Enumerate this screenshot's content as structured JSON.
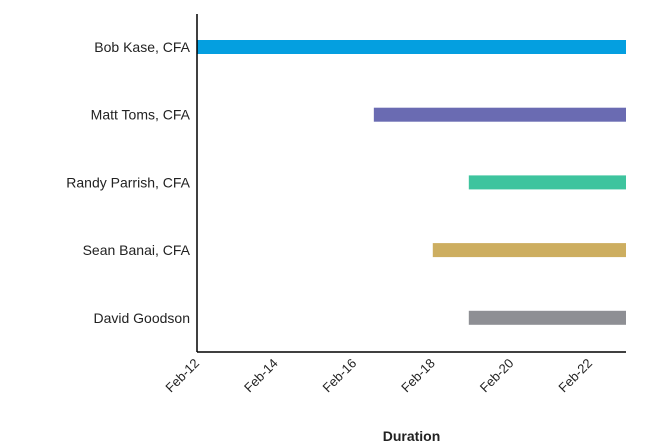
{
  "chart_data": {
    "type": "gantt",
    "title": "",
    "xlabel": "Duration",
    "ylabel": "",
    "x_ticks": [
      "Feb-12",
      "Feb-14",
      "Feb-16",
      "Feb-18",
      "Feb-20",
      "Feb-22"
    ],
    "xlim": [
      "2012-02",
      "2023-01"
    ],
    "grid": false,
    "legend": "none",
    "series": [
      {
        "name": "Bob Kase, CFA",
        "start": "2012-02",
        "end": "2023-01",
        "color": "#049fe0"
      },
      {
        "name": "Matt Toms, CFA",
        "start": "2016-08",
        "end": "2023-01",
        "color": "#6a6bb2"
      },
      {
        "name": "Randy Parrish, CFA",
        "start": "2019-01",
        "end": "2023-01",
        "color": "#3ec49e"
      },
      {
        "name": "Sean Banai, CFA",
        "start": "2018-02",
        "end": "2023-01",
        "color": "#cdae60"
      },
      {
        "name": "David Goodson",
        "start": "2019-01",
        "end": "2023-01",
        "color": "#8e8f94"
      }
    ]
  }
}
